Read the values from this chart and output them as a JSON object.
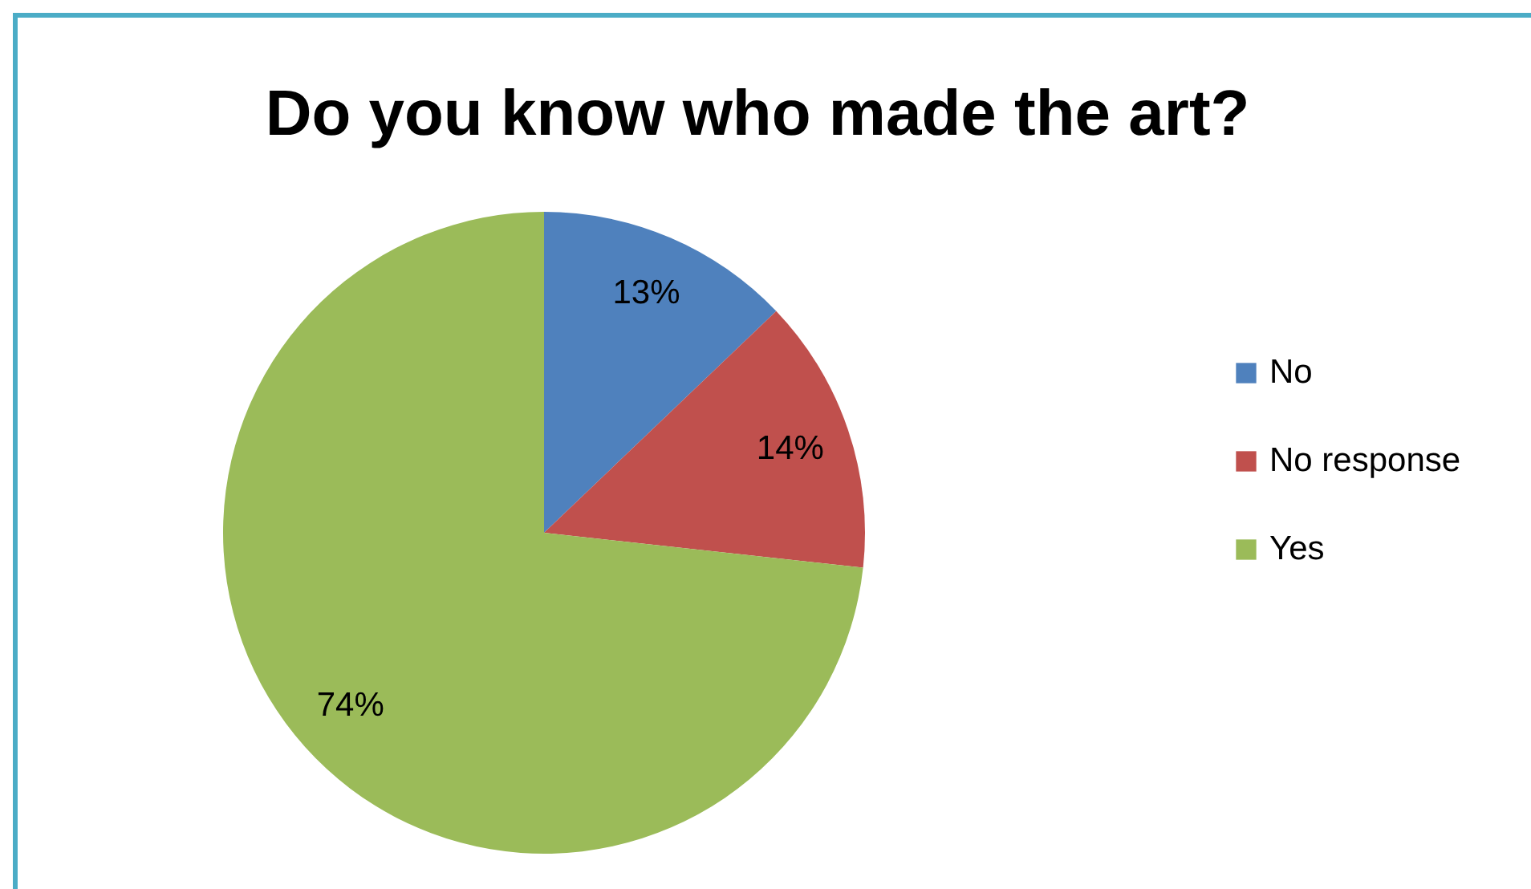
{
  "chart_data": {
    "type": "pie",
    "title": "Do you know who made the art?",
    "categories": [
      "No",
      "No response",
      "Yes"
    ],
    "values": [
      13,
      14,
      74
    ],
    "value_labels": [
      "13%",
      "14%",
      "74%"
    ],
    "colors": [
      "#4f81bd",
      "#c0504d",
      "#9bbb59"
    ],
    "legend": "right"
  }
}
